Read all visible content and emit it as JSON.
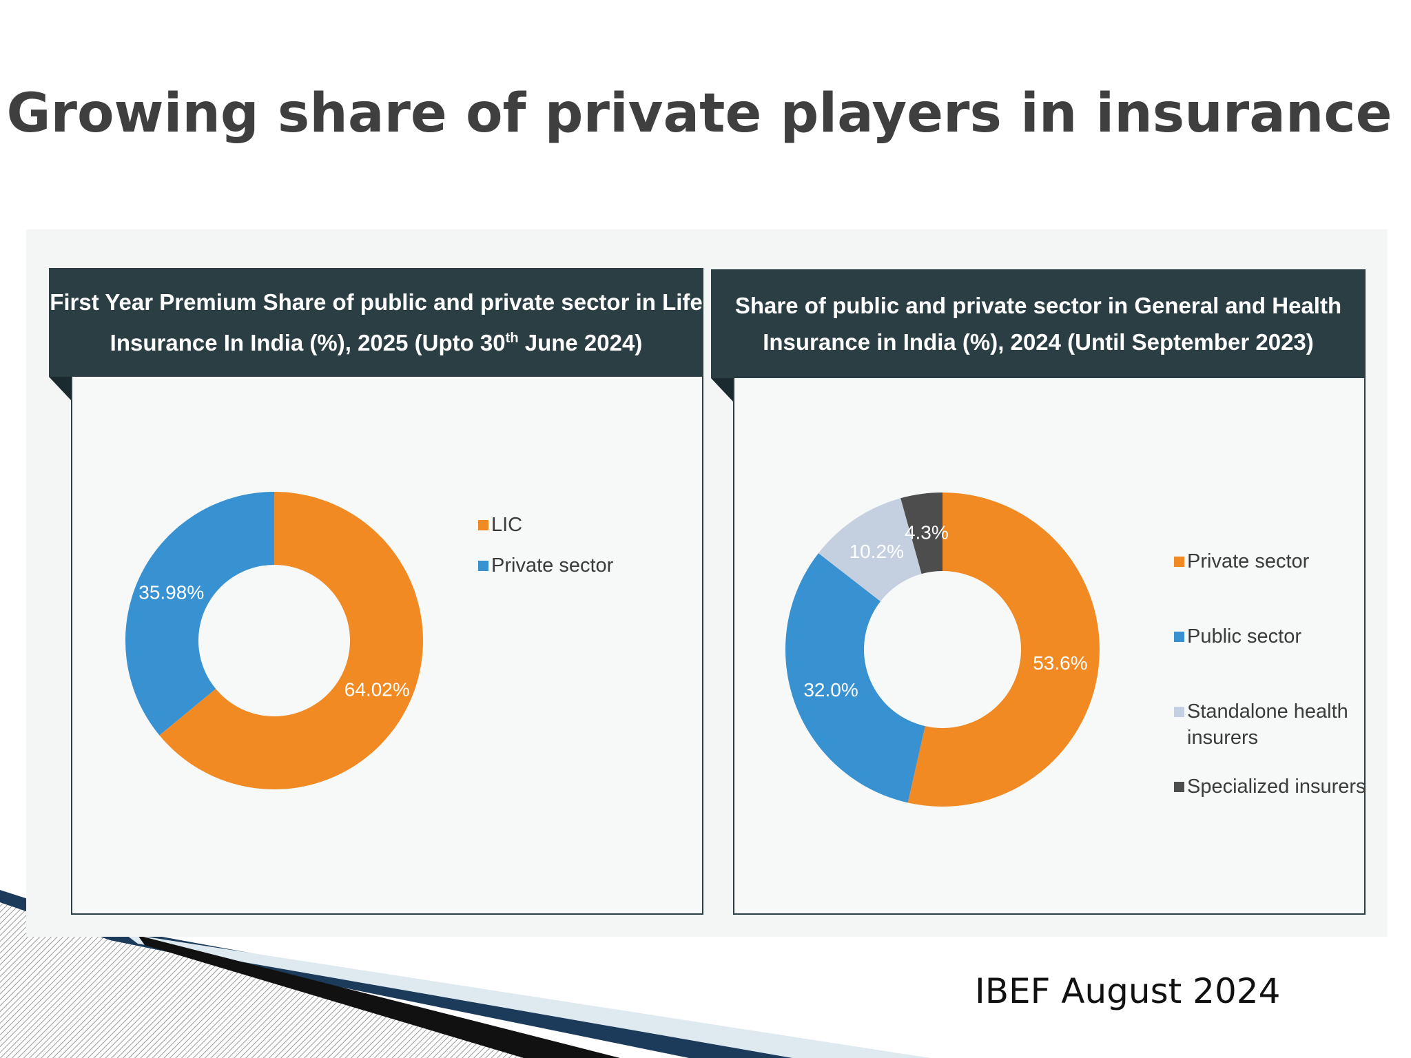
{
  "slide": {
    "title": "Growing share of private players in insurance",
    "source_note": "IBEF August 2024"
  },
  "colors": {
    "orange": "#f28a24",
    "blue": "#3891d1",
    "light_gray_blue": "#c4d0e0",
    "dark_gray": "#4d4d4d",
    "header_bg": "#2a3e44"
  },
  "chart_data": [
    {
      "type": "pie",
      "subtype": "donut",
      "title_line1": "First Year Premium Share of public and private sector in Life",
      "title_line2_prefix": "Insurance In India (%), 2025 (Upto 30",
      "title_line2_sup": "th",
      "title_line2_suffix": " June 2024)",
      "legend_position": "right",
      "slices": [
        {
          "name": "LIC",
          "value": 64.02,
          "label": "64.02%",
          "color": "#f28a24"
        },
        {
          "name": "Private sector",
          "value": 35.98,
          "label": "35.98%",
          "color": "#3891d1"
        }
      ]
    },
    {
      "type": "pie",
      "subtype": "donut",
      "title_line1": "Share of public and private sector in General and Health",
      "title_line2": "Insurance in India (%), 2024 (Until September 2023)",
      "legend_position": "right",
      "slices": [
        {
          "name": "Private sector",
          "value": 53.6,
          "label": "53.6%",
          "color": "#f28a24"
        },
        {
          "name": "Public sector",
          "value": 32.0,
          "label": "32.0%",
          "color": "#3891d1"
        },
        {
          "name": "Standalone health insurers",
          "value": 10.2,
          "label": "10.2%",
          "color": "#c4d0e0"
        },
        {
          "name": "Specialized insurers",
          "value": 4.3,
          "label": "4.3%",
          "color": "#4d4d4d"
        }
      ],
      "legend": [
        {
          "line1": "Private sector"
        },
        {
          "line1": "Public sector"
        },
        {
          "line1": "Standalone health",
          "line2": "insurers"
        },
        {
          "line1": "Specialized insurers"
        }
      ]
    }
  ]
}
